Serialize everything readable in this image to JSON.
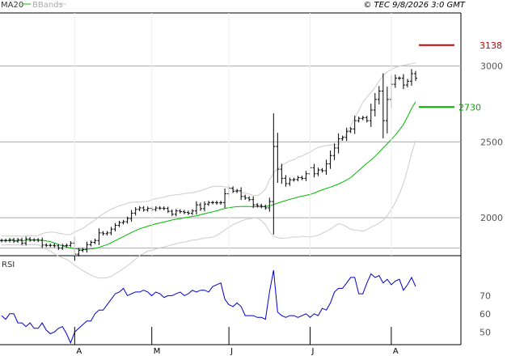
{
  "header": {
    "legend_ma": "MA20",
    "legend_bb": "BBands",
    "timestamp": "© TEC 9/8/2026 3:0 GMT"
  },
  "colors": {
    "ma": "#00bb00",
    "bbands": "#cccccc",
    "bars": "#000000",
    "rsi": "#0000cc",
    "resistance": "#cc0000",
    "support": "#00aa00",
    "grid": "#aaaaaa"
  },
  "chart_data": [
    {
      "type": "ohlc",
      "panel": "price",
      "ylim": [
        1750,
        3350
      ],
      "y_ticks": [
        "3000",
        "2500",
        "2000"
      ],
      "x_ticks": [
        "A",
        "M",
        "J",
        "J",
        "A"
      ],
      "legend": "top-left",
      "grid": true,
      "series": [
        {
          "name": "MA20",
          "role": "ma",
          "values": [
            1850,
            1850,
            1851,
            1850,
            1851,
            1848,
            1852,
            1852,
            1852,
            1852,
            1852,
            1847,
            1843,
            1833,
            1823,
            1815,
            1807,
            1800,
            1796,
            1794,
            1791,
            1793,
            1795,
            1798,
            1805,
            1814,
            1823,
            1835,
            1849,
            1863,
            1876,
            1890,
            1903,
            1916,
            1927,
            1936,
            1944,
            1952,
            1960,
            1966,
            1972,
            1979,
            1985,
            1990,
            1995,
            1999,
            2004,
            2009,
            2013,
            2020,
            2027,
            2033,
            2039,
            2046,
            2054,
            2062,
            2067,
            2070,
            2073,
            2074,
            2075,
            2074,
            2073,
            2072,
            2072,
            2073,
            2079,
            2087,
            2096,
            2105,
            2113,
            2122,
            2128,
            2136,
            2142,
            2148,
            2154,
            2163,
            2174,
            2184,
            2193,
            2202,
            2212,
            2222,
            2235,
            2248,
            2265,
            2288,
            2312,
            2336,
            2359,
            2381,
            2405,
            2432,
            2461,
            2488,
            2516,
            2545,
            2579,
            2615,
            2665,
            2720,
            2765
          ]
        },
        {
          "name": "BBands upper",
          "role": "bbands",
          "values": [
            1879,
            1879,
            1880,
            1879,
            1880,
            1877,
            1881,
            1881,
            1881,
            1881,
            1896,
            1902,
            1905,
            1905,
            1899,
            1894,
            1888,
            1890,
            1906,
            1918,
            1930,
            1949,
            1967,
            1986,
            2007,
            2025,
            2041,
            2056,
            2068,
            2079,
            2087,
            2096,
            2102,
            2104,
            2103,
            2107,
            2108,
            2119,
            2126,
            2130,
            2136,
            2144,
            2148,
            2151,
            2154,
            2159,
            2162,
            2165,
            2172,
            2179,
            2187,
            2198,
            2206,
            2208,
            2207,
            2204,
            2196,
            2187,
            2180,
            2170,
            2162,
            2156,
            2147,
            2146,
            2163,
            2191,
            2251,
            2295,
            2323,
            2346,
            2360,
            2375,
            2382,
            2400,
            2406,
            2421,
            2434,
            2448,
            2464,
            2470,
            2476,
            2479,
            2481,
            2483,
            2517,
            2555,
            2606,
            2658,
            2707,
            2761,
            2796,
            2824,
            2860,
            2900,
            2938,
            2963,
            2977,
            2990,
            3000,
            3005,
            3010,
            3015,
            3020
          ]
        },
        {
          "name": "BBands lower",
          "role": "bbands",
          "values": [
            1821,
            1821,
            1822,
            1821,
            1822,
            1819,
            1823,
            1823,
            1823,
            1823,
            1808,
            1792,
            1781,
            1761,
            1747,
            1736,
            1726,
            1710,
            1686,
            1670,
            1652,
            1637,
            1623,
            1610,
            1603,
            1603,
            1605,
            1614,
            1630,
            1647,
            1665,
            1684,
            1704,
            1728,
            1751,
            1765,
            1780,
            1785,
            1794,
            1802,
            1808,
            1814,
            1822,
            1829,
            1836,
            1839,
            1846,
            1853,
            1854,
            1861,
            1867,
            1868,
            1872,
            1884,
            1901,
            1920,
            1938,
            1953,
            1966,
            1978,
            1988,
            1992,
            1999,
            1998,
            1981,
            1955,
            1907,
            1879,
            1869,
            1864,
            1866,
            1869,
            1874,
            1872,
            1878,
            1875,
            1874,
            1878,
            1884,
            1898,
            1910,
            1925,
            1943,
            1961,
            1953,
            1941,
            1924,
            1918,
            1917,
            1911,
            1922,
            1938,
            1950,
            1964,
            1984,
            2013,
            2055,
            2100,
            2158,
            2225,
            2320,
            2425,
            2510
          ]
        },
        {
          "name": "Price",
          "role": "close",
          "values": [
            1850,
            1850,
            1855,
            1846,
            1855,
            1833,
            1860,
            1854,
            1854,
            1851,
            1820,
            1818,
            1818,
            1815,
            1800,
            1816,
            1818,
            1833,
            1760,
            1785,
            1790,
            1823,
            1838,
            1850,
            1900,
            1895,
            1900,
            1925,
            1950,
            1968,
            1974,
            1995,
            2030,
            2055,
            2065,
            2052,
            2062,
            2054,
            2064,
            2063,
            2061,
            2043,
            2023,
            2045,
            2040,
            2035,
            2030,
            2045,
            2085,
            2060,
            2090,
            2100,
            2100,
            2098,
            2100,
            2158,
            2195,
            2175,
            2178,
            2140,
            2130,
            2120,
            2085,
            2080,
            2075,
            2065,
            2107,
            2470,
            2320,
            2260,
            2225,
            2250,
            2252,
            2265,
            2260,
            2290,
            2330,
            2290,
            2315,
            2310,
            2355,
            2410,
            2460,
            2520,
            2530,
            2570,
            2585,
            2640,
            2655,
            2660,
            2640,
            2710,
            2780,
            2835,
            2640,
            2780,
            2880,
            2920,
            2920,
            2875,
            2900,
            2950,
            2920
          ]
        }
      ],
      "reference_levels": [
        {
          "name": "resistance",
          "value": 3138,
          "label": "3138"
        },
        {
          "name": "support",
          "value": 2730,
          "label": "2730"
        }
      ]
    },
    {
      "type": "line",
      "panel": "RSI",
      "title": "RSI",
      "ylim": [
        43,
        92
      ],
      "y_ticks": [
        "70",
        "60",
        "50"
      ],
      "grid": true,
      "series": [
        {
          "name": "RSI",
          "values": [
            59,
            57,
            60,
            60,
            55,
            55,
            53,
            55,
            52,
            52,
            55,
            51,
            49,
            50,
            52,
            53,
            49,
            44,
            50,
            52,
            54,
            56,
            56,
            60,
            62,
            62,
            65,
            68,
            71,
            72,
            74,
            70,
            71,
            72,
            72,
            73,
            72,
            70,
            72,
            71,
            69,
            70,
            70,
            71,
            72,
            70,
            71,
            73,
            72,
            73,
            73,
            72,
            75,
            76,
            77,
            68,
            65,
            64,
            66,
            64,
            59,
            59,
            59,
            58,
            58,
            57,
            72,
            84,
            61,
            59,
            58,
            59,
            59,
            58,
            59,
            60,
            58,
            60,
            59,
            63,
            62,
            66,
            72,
            74,
            74,
            77,
            80,
            80,
            71,
            71,
            77,
            82,
            80,
            81,
            77,
            79,
            76,
            78,
            79,
            73,
            76,
            80,
            75
          ]
        }
      ]
    }
  ]
}
